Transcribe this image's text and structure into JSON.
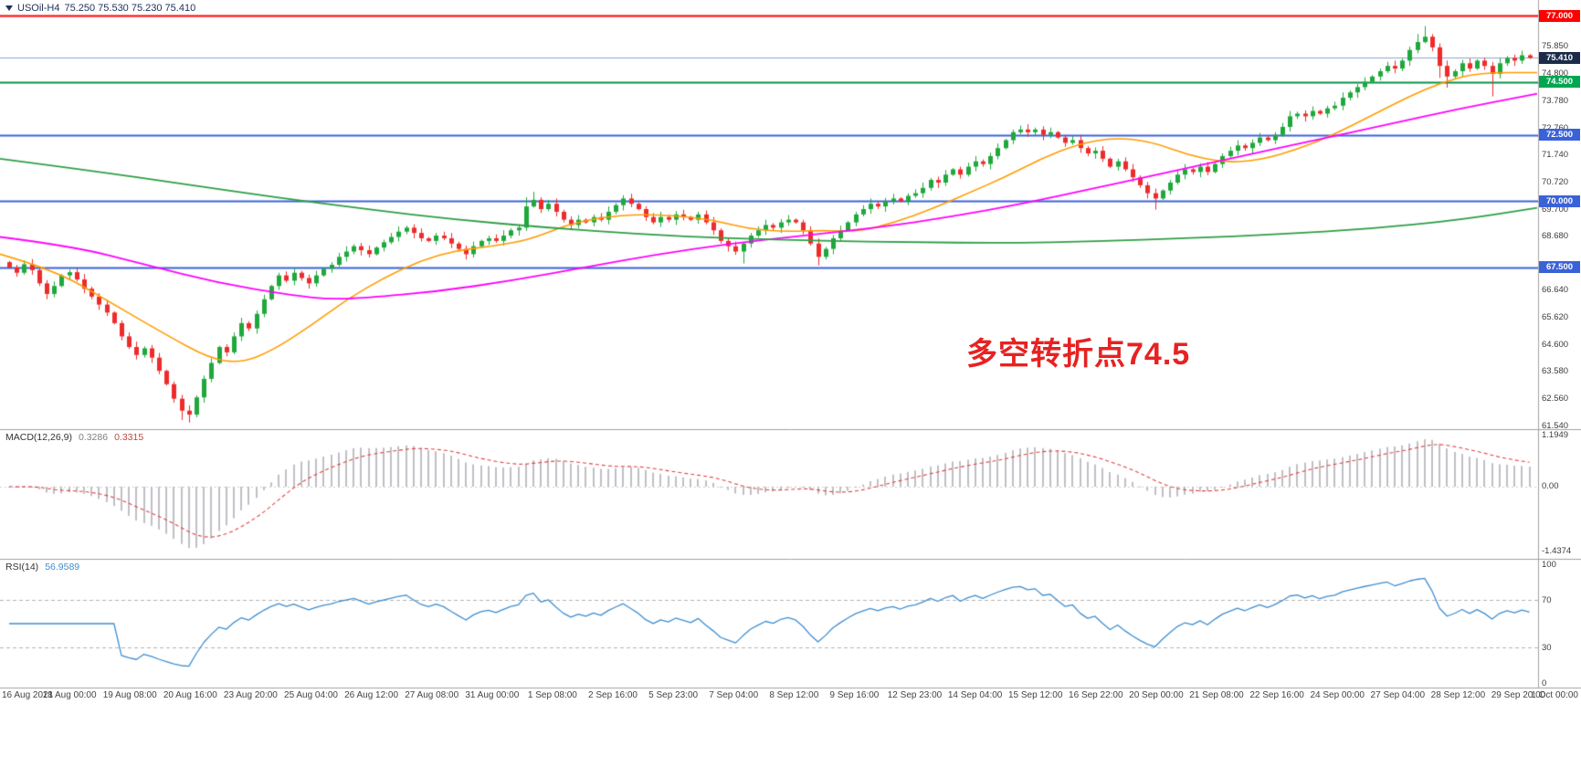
{
  "title": {
    "symbol": "USOil-H4",
    "ohlc": "75.250 75.530 75.230 75.410"
  },
  "annotation": {
    "text": "多空转折点74.5",
    "color": "#e62222"
  },
  "indicators": {
    "macd": {
      "label": "MACD(12,26,9)",
      "value_main": "0.3286",
      "value_signal": "0.3315",
      "axis_top": "1.1949",
      "axis_zero": "0.00",
      "axis_bottom": "-1.4374",
      "params": {
        "fast": 12,
        "slow": 26,
        "signal": 9
      }
    },
    "rsi": {
      "label": "RSI(14)",
      "value": "56.9589",
      "period": 14,
      "axis_labels": [
        "100",
        "70",
        "30",
        "0"
      ],
      "levels": [
        70,
        30
      ]
    }
  },
  "colors": {
    "bull": "#1fa83c",
    "bear": "#ee2b2b",
    "macd_hist": "#bfbfc6",
    "macd_signal": "#e04040",
    "rsi_line": "#3e8ed0",
    "level_dash": "#b3b3b3",
    "axis_text": "#3c3c3c",
    "divider": "#a0a0a0"
  },
  "chart_data": {
    "type": "candlestick",
    "symbol": "USOil",
    "timeframe": "H4",
    "ylim": [
      61.54,
      77.0
    ],
    "grid": false,
    "price_ticks": [
      "61.540",
      "62.560",
      "63.580",
      "64.600",
      "65.620",
      "66.640",
      "68.680",
      "69.700",
      "70.720",
      "71.740",
      "72.760",
      "73.780",
      "74.800",
      "75.850"
    ],
    "open_first": 67.7,
    "closes": [
      67.5,
      67.3,
      67.62,
      67.4,
      66.9,
      66.5,
      66.8,
      67.2,
      67.32,
      67.05,
      66.7,
      66.4,
      66.1,
      65.8,
      65.4,
      64.9,
      64.5,
      64.2,
      64.45,
      64.1,
      63.6,
      63.1,
      62.55,
      62.1,
      61.95,
      62.6,
      63.3,
      63.9,
      64.5,
      64.3,
      64.9,
      65.4,
      65.2,
      65.75,
      66.3,
      66.8,
      67.2,
      67.0,
      67.3,
      67.1,
      66.9,
      67.2,
      67.45,
      67.6,
      67.9,
      68.1,
      68.3,
      68.15,
      68.0,
      68.25,
      68.45,
      68.65,
      68.85,
      69.0,
      68.8,
      68.6,
      68.5,
      68.7,
      68.6,
      68.4,
      68.2,
      68.0,
      68.3,
      68.5,
      68.6,
      68.5,
      68.7,
      68.9,
      69.0,
      69.8,
      70.05,
      69.7,
      69.9,
      69.6,
      69.3,
      69.1,
      69.3,
      69.2,
      69.4,
      69.3,
      69.6,
      69.85,
      70.1,
      69.9,
      69.7,
      69.4,
      69.2,
      69.4,
      69.3,
      69.5,
      69.4,
      69.3,
      69.5,
      69.2,
      68.9,
      68.5,
      68.3,
      68.1,
      68.4,
      68.7,
      68.9,
      69.1,
      69.0,
      69.2,
      69.3,
      69.2,
      68.9,
      68.4,
      67.9,
      68.2,
      68.6,
      68.9,
      69.2,
      69.5,
      69.7,
      69.9,
      69.8,
      70.0,
      70.1,
      70.0,
      70.2,
      70.3,
      70.5,
      70.8,
      70.7,
      71.0,
      71.2,
      71.0,
      71.3,
      71.5,
      71.4,
      71.7,
      72.0,
      72.3,
      72.6,
      72.7,
      72.6,
      72.7,
      72.5,
      72.6,
      72.4,
      72.2,
      72.3,
      72.0,
      71.8,
      71.9,
      71.6,
      71.3,
      71.5,
      71.2,
      70.9,
      70.6,
      70.3,
      70.1,
      70.4,
      70.7,
      71.0,
      71.2,
      71.1,
      71.3,
      71.1,
      71.4,
      71.7,
      71.9,
      72.1,
      72.0,
      72.2,
      72.4,
      72.3,
      72.5,
      72.8,
      73.2,
      73.3,
      73.2,
      73.4,
      73.3,
      73.5,
      73.6,
      73.9,
      74.1,
      74.3,
      74.5,
      74.7,
      74.9,
      75.1,
      75.0,
      75.3,
      75.7,
      76.0,
      76.2,
      75.8,
      75.1,
      74.7,
      74.9,
      75.2,
      75.0,
      75.3,
      75.1,
      74.8,
      75.2,
      75.4,
      75.3,
      75.5,
      75.41
    ],
    "wick_overrides": {
      "23": [
        0,
        0.35
      ],
      "24": [
        0,
        0.3
      ],
      "69": [
        0.35,
        0
      ],
      "70": [
        0.3,
        0
      ],
      "98": [
        0,
        0.45
      ],
      "108": [
        0,
        0.32
      ],
      "153": [
        0,
        0.42
      ],
      "188": [
        0.3,
        0
      ],
      "189": [
        0.4,
        0
      ],
      "191": [
        0,
        0.45
      ],
      "192": [
        0,
        0.42
      ],
      "198": [
        0,
        0.85
      ]
    },
    "hlines": [
      {
        "price": 77.0,
        "label": "77.000",
        "color": "#fe0000",
        "badge": "#fe0000",
        "current": false
      },
      {
        "price": 75.41,
        "label": "75.410",
        "color": "#8aa7cf",
        "badge": "#1c2b4a",
        "current": true
      },
      {
        "price": 74.5,
        "label": "74.500",
        "color": "#089048",
        "badge": "#00a650",
        "current": false
      },
      {
        "price": 72.5,
        "label": "72.500",
        "color": "#3a62d8",
        "badge": "#3a62d8",
        "current": false
      },
      {
        "price": 70.0,
        "label": "70.000",
        "color": "#3a62d8",
        "badge": "#3a62d8",
        "current": false
      },
      {
        "price": 67.5,
        "label": "67.500",
        "color": "#3a62d8",
        "badge": "#3a62d8",
        "current": false
      }
    ],
    "moving_averages": [
      {
        "name": "ma-fast-orange",
        "color": "#ff9c00",
        "width": 1.6,
        "points": [
          [
            0,
            68.0
          ],
          [
            60,
            67.4
          ],
          [
            120,
            66.2
          ],
          [
            180,
            65.0
          ],
          [
            230,
            64.05
          ],
          [
            265,
            63.9
          ],
          [
            300,
            64.4
          ],
          [
            340,
            65.3
          ],
          [
            380,
            66.3
          ],
          [
            420,
            67.1
          ],
          [
            460,
            67.75
          ],
          [
            500,
            68.15
          ],
          [
            540,
            68.3
          ],
          [
            580,
            68.55
          ],
          [
            620,
            69.1
          ],
          [
            660,
            69.4
          ],
          [
            700,
            69.5
          ],
          [
            740,
            69.45
          ],
          [
            780,
            69.3
          ],
          [
            820,
            68.95
          ],
          [
            860,
            68.85
          ],
          [
            900,
            68.9
          ],
          [
            940,
            68.85
          ],
          [
            980,
            69.2
          ],
          [
            1020,
            69.7
          ],
          [
            1060,
            70.3
          ],
          [
            1100,
            70.9
          ],
          [
            1140,
            71.6
          ],
          [
            1180,
            72.15
          ],
          [
            1220,
            72.4
          ],
          [
            1260,
            72.25
          ],
          [
            1300,
            71.75
          ],
          [
            1340,
            71.45
          ],
          [
            1380,
            71.55
          ],
          [
            1420,
            71.95
          ],
          [
            1460,
            72.5
          ],
          [
            1500,
            73.2
          ],
          [
            1540,
            73.9
          ],
          [
            1580,
            74.5
          ],
          [
            1620,
            74.85
          ],
          [
            1683,
            74.85
          ]
        ]
      },
      {
        "name": "ma-mid-magenta",
        "color": "#ff00ff",
        "width": 1.8,
        "points": [
          [
            0,
            68.65
          ],
          [
            80,
            68.3
          ],
          [
            160,
            67.6
          ],
          [
            240,
            66.9
          ],
          [
            320,
            66.45
          ],
          [
            360,
            66.3
          ],
          [
            400,
            66.35
          ],
          [
            480,
            66.6
          ],
          [
            560,
            67.0
          ],
          [
            640,
            67.5
          ],
          [
            720,
            68.0
          ],
          [
            800,
            68.4
          ],
          [
            880,
            68.7
          ],
          [
            960,
            69.0
          ],
          [
            1040,
            69.4
          ],
          [
            1120,
            69.9
          ],
          [
            1200,
            70.5
          ],
          [
            1280,
            71.1
          ],
          [
            1360,
            71.7
          ],
          [
            1440,
            72.3
          ],
          [
            1520,
            72.9
          ],
          [
            1600,
            73.5
          ],
          [
            1683,
            74.05
          ]
        ]
      },
      {
        "name": "ma-slow-green",
        "color": "#2e9e44",
        "width": 1.8,
        "points": [
          [
            0,
            71.6
          ],
          [
            100,
            71.15
          ],
          [
            200,
            70.65
          ],
          [
            300,
            70.15
          ],
          [
            400,
            69.7
          ],
          [
            500,
            69.3
          ],
          [
            600,
            69.0
          ],
          [
            700,
            68.75
          ],
          [
            800,
            68.6
          ],
          [
            900,
            68.5
          ],
          [
            1000,
            68.45
          ],
          [
            1100,
            68.42
          ],
          [
            1200,
            68.48
          ],
          [
            1300,
            68.6
          ],
          [
            1400,
            68.75
          ],
          [
            1500,
            68.95
          ],
          [
            1600,
            69.3
          ],
          [
            1683,
            69.75
          ]
        ]
      }
    ],
    "x_labels": [
      "16 Aug 2021",
      "18 Aug 00:00",
      "19 Aug 08:00",
      "20 Aug 16:00",
      "23 Aug 20:00",
      "25 Aug 04:00",
      "26 Aug 12:00",
      "27 Aug 08:00",
      "31 Aug 00:00",
      "1 Sep 08:00",
      "2 Sep 16:00",
      "5 Sep 23:00",
      "7 Sep 04:00",
      "8 Sep 12:00",
      "9 Sep 16:00",
      "12 Sep 23:00",
      "14 Sep 04:00",
      "15 Sep 12:00",
      "16 Sep 22:00",
      "20 Sep 00:00",
      "21 Sep 08:00",
      "22 Sep 16:00",
      "24 Sep 00:00",
      "27 Sep 04:00",
      "28 Sep 12:00",
      "29 Sep 20:00",
      "1 Oct 00:00"
    ]
  }
}
